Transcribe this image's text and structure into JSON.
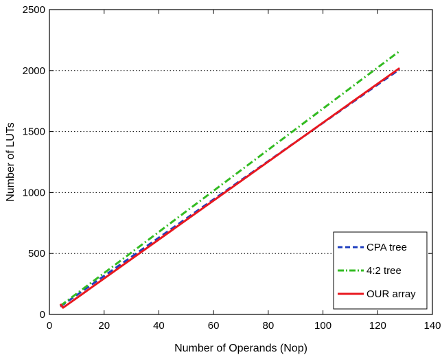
{
  "chart_data": {
    "type": "line",
    "xlabel": "Number of Operands (Nop)",
    "ylabel": "Number of LUTs",
    "xlim": [
      0,
      140
    ],
    "ylim": [
      0,
      2500
    ],
    "xticks": [
      0,
      20,
      40,
      60,
      80,
      100,
      120,
      140
    ],
    "yticks": [
      0,
      500,
      1000,
      1500,
      2000,
      2500
    ],
    "grid": "y-dotted",
    "legend_position": "bottom-right",
    "series": [
      {
        "name": "CPA tree",
        "color": "#1f3fbf",
        "style": "dashed",
        "x": [
          4,
          128
        ],
        "y": [
          65,
          2010
        ]
      },
      {
        "name": "4:2 tree",
        "color": "#33bb22",
        "style": "dash-dot",
        "x": [
          4,
          128
        ],
        "y": [
          70,
          2160
        ]
      },
      {
        "name": "OUR array",
        "color": "#e8181f",
        "style": "solid",
        "x": [
          4,
          5,
          128
        ],
        "y": [
          85,
          55,
          2020
        ]
      }
    ]
  }
}
